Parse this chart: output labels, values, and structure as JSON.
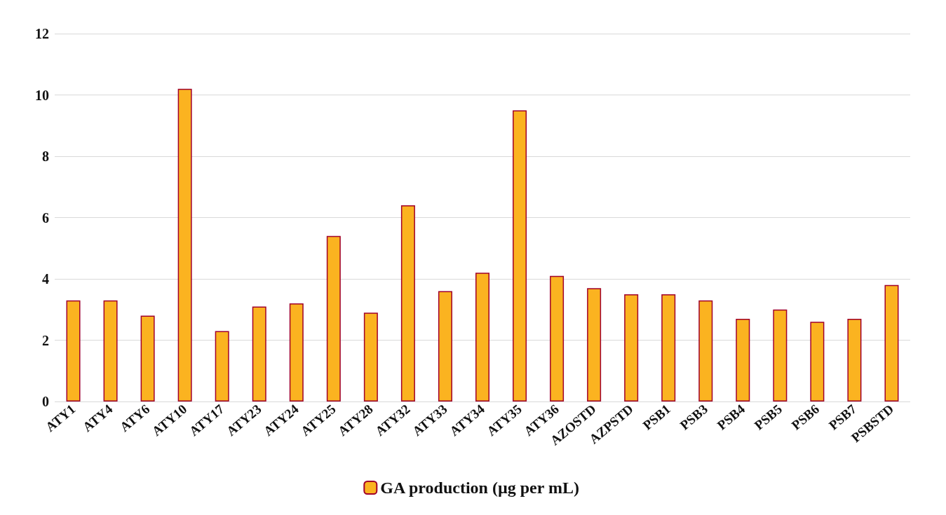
{
  "chart_data": {
    "type": "bar",
    "categories": [
      "ATY1",
      "ATY4",
      "ATY6",
      "ATY10",
      "ATY17",
      "ATY23",
      "ATY24",
      "ATY25",
      "ATY28",
      "ATY32",
      "ATY33",
      "ATY34",
      "ATY35",
      "ATY36",
      "AZOSTD",
      "AZPSTD",
      "PSB1",
      "PSB3",
      "PSB4",
      "PSB5",
      "PSB6",
      "PSB7",
      "PSBSTD"
    ],
    "series": [
      {
        "name": "GA production (µg per mL)",
        "color": "#fbb320",
        "values": [
          3.3,
          3.3,
          2.8,
          10.2,
          2.3,
          3.1,
          3.2,
          5.4,
          2.9,
          6.4,
          3.6,
          4.2,
          9.5,
          4.1,
          3.7,
          3.5,
          3.5,
          3.3,
          2.7,
          3.0,
          2.6,
          2.7,
          3.8
        ]
      }
    ],
    "ylim": [
      0,
      12
    ],
    "yticks": [
      0,
      2,
      4,
      6,
      8,
      10,
      12
    ],
    "grid": "y",
    "legend": "bottom"
  }
}
